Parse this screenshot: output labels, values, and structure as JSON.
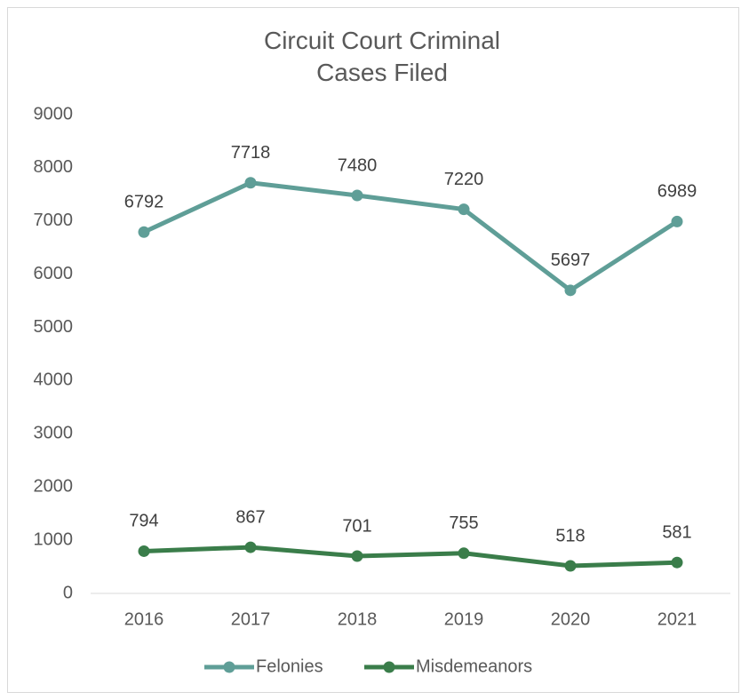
{
  "chart_data": {
    "type": "line",
    "title": "Circuit Court Criminal Cases Filed",
    "categories": [
      "2016",
      "2017",
      "2018",
      "2019",
      "2020",
      "2021"
    ],
    "series": [
      {
        "name": "Felonies",
        "color": "#5f9e97",
        "values": [
          6792,
          7718,
          7480,
          7220,
          5697,
          6989
        ]
      },
      {
        "name": "Misdemeanors",
        "color": "#3a7d4a",
        "values": [
          794,
          867,
          701,
          755,
          518,
          581
        ]
      }
    ],
    "ylim": [
      0,
      9000
    ],
    "yticks": [
      0,
      1000,
      2000,
      3000,
      4000,
      5000,
      6000,
      7000,
      8000,
      9000
    ],
    "grid": false,
    "legend": "bottom"
  }
}
